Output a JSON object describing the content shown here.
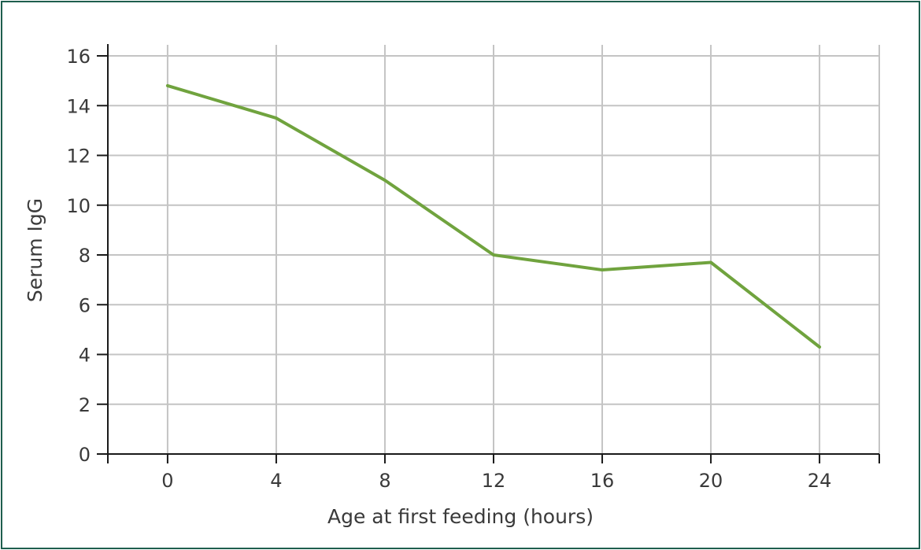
{
  "chart_data": {
    "type": "line",
    "title": "",
    "xlabel": "Age at first feeding (hours)",
    "ylabel": "Serum IgG",
    "x_ticks": [
      0,
      4,
      8,
      12,
      16,
      20,
      24
    ],
    "y_ticks": [
      0,
      2,
      4,
      6,
      8,
      10,
      12,
      14,
      16
    ],
    "xlim": [
      -2.2,
      26.2
    ],
    "ylim": [
      0,
      16
    ],
    "grid": true,
    "legend": "none",
    "series": [
      {
        "color": "#70a33e",
        "x": [
          0,
          4,
          8,
          12,
          16,
          20,
          24
        ],
        "y": [
          14.8,
          13.5,
          11.0,
          8.0,
          7.4,
          7.7,
          4.3
        ]
      }
    ]
  }
}
